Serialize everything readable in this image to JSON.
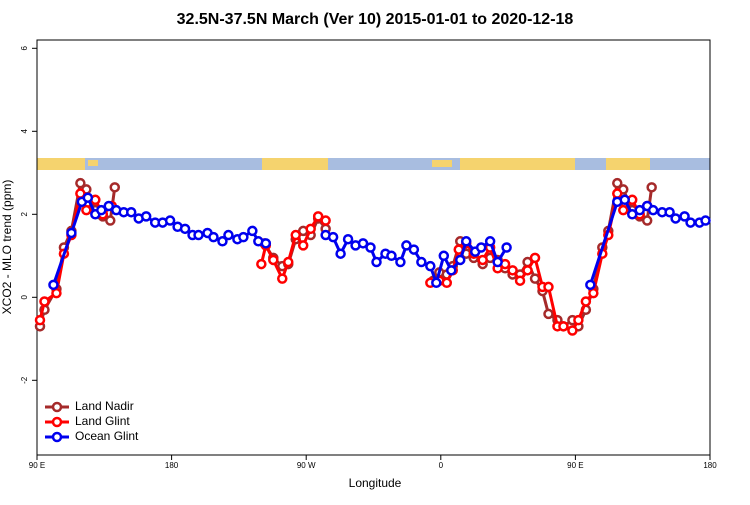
{
  "chart_data": {
    "type": "line",
    "title": "32.5N-37.5N March (Ver 10)   2015-01-01 to 2020-12-18",
    "xlabel": "Longitude",
    "ylabel": "XCO2 - MLO trend (ppm)",
    "xlim": [
      90,
      540
    ],
    "ylim": [
      -3.8,
      6.2
    ],
    "xticks": [
      {
        "value": 90,
        "label": "90 E"
      },
      180,
      {
        "value": 270,
        "label": "90 W"
      },
      {
        "value": 360,
        "label": "0"
      },
      {
        "value": 450,
        "label": "90 E"
      },
      {
        "value": 540,
        "label": "180"
      }
    ],
    "yticks": [
      -2,
      0,
      2,
      4,
      6
    ],
    "legend": "lower left",
    "series": [
      {
        "name": "Land Nadir",
        "color": "#a52a2a",
        "x": [
          92,
          95,
          103,
          108,
          113,
          119,
          123,
          129,
          134,
          139,
          142,
          null,
          242,
          248,
          254,
          258,
          263,
          268,
          273,
          278,
          283,
          null,
          355,
          359,
          364,
          368,
          373,
          377,
          382,
          388,
          393,
          398,
          403,
          408,
          413,
          418,
          423,
          428,
          432,
          438,
          442,
          448,
          452,
          457,
          462,
          468,
          472,
          478,
          482,
          488,
          493,
          498,
          501
        ],
        "values": [
          -0.7,
          -0.3,
          0.2,
          1.2,
          1.6,
          2.75,
          2.6,
          2.1,
          1.95,
          1.85,
          2.65,
          null,
          1.3,
          0.95,
          0.75,
          0.8,
          1.4,
          1.6,
          1.5,
          1.9,
          1.65,
          null,
          0.4,
          0.6,
          0.55,
          0.75,
          1.35,
          1.05,
          0.95,
          0.8,
          0.95,
          0.9,
          0.7,
          0.55,
          0.55,
          0.85,
          0.45,
          0.15,
          -0.4,
          -0.55,
          -0.7,
          -0.55,
          -0.7,
          -0.3,
          0.2,
          1.2,
          1.6,
          2.75,
          2.6,
          2.1,
          1.95,
          1.85,
          2.65
        ]
      },
      {
        "name": "Land Glint",
        "color": "#ff0000",
        "x": [
          92,
          95,
          103,
          108,
          113,
          119,
          123,
          129,
          134,
          140,
          null,
          240,
          243,
          248,
          254,
          258,
          263,
          268,
          273,
          278,
          283,
          null,
          353,
          359,
          364,
          368,
          372,
          377,
          382,
          388,
          393,
          398,
          403,
          408,
          413,
          418,
          423,
          428,
          432,
          438,
          442,
          448,
          452,
          457,
          462,
          468,
          472,
          478,
          482,
          488,
          493,
          498
        ],
        "values": [
          -0.55,
          -0.1,
          0.1,
          1.05,
          1.5,
          2.5,
          2.1,
          2.35,
          2.0,
          2.2,
          null,
          0.8,
          1.25,
          0.9,
          0.45,
          0.85,
          1.5,
          1.25,
          1.65,
          1.95,
          1.85,
          null,
          0.35,
          0.4,
          0.35,
          0.65,
          1.15,
          1.3,
          1.05,
          0.9,
          1.2,
          0.7,
          0.8,
          0.65,
          0.4,
          0.65,
          0.95,
          0.25,
          0.25,
          -0.7,
          -0.7,
          -0.8,
          -0.55,
          -0.1,
          0.1,
          1.05,
          1.5,
          2.5,
          2.1,
          2.35,
          2.0,
          2.2
        ]
      },
      {
        "name": "Ocean Glint",
        "color": "#0000ee",
        "x": [
          101,
          113,
          120,
          124,
          129,
          133,
          138,
          143,
          148,
          153,
          158,
          163,
          169,
          174,
          179,
          184,
          189,
          194,
          198,
          204,
          208,
          214,
          218,
          224,
          228,
          234,
          238,
          243,
          null,
          283,
          288,
          293,
          298,
          303,
          308,
          313,
          317,
          323,
          327,
          333,
          337,
          342,
          347,
          353,
          357,
          362,
          367,
          373,
          377,
          383,
          387,
          393,
          398,
          404,
          null,
          460,
          478,
          483,
          488,
          493,
          498,
          502,
          508,
          513,
          517,
          523,
          527,
          533,
          537
        ],
        "values": [
          0.3,
          1.55,
          2.3,
          2.4,
          2.0,
          2.1,
          2.2,
          2.1,
          2.05,
          2.05,
          1.9,
          1.95,
          1.8,
          1.8,
          1.85,
          1.7,
          1.65,
          1.5,
          1.5,
          1.55,
          1.45,
          1.35,
          1.5,
          1.4,
          1.45,
          1.6,
          1.35,
          1.3,
          null,
          1.5,
          1.45,
          1.05,
          1.4,
          1.25,
          1.3,
          1.2,
          0.85,
          1.05,
          1.0,
          0.85,
          1.25,
          1.15,
          0.85,
          0.75,
          0.35,
          1.0,
          0.65,
          0.9,
          1.35,
          1.1,
          1.2,
          1.35,
          0.85,
          1.2,
          null,
          0.3,
          2.3,
          2.35,
          2.0,
          2.1,
          2.2,
          2.1,
          2.05,
          2.05,
          1.9,
          1.95,
          1.8,
          1.8,
          1.85
        ]
      }
    ]
  }
}
